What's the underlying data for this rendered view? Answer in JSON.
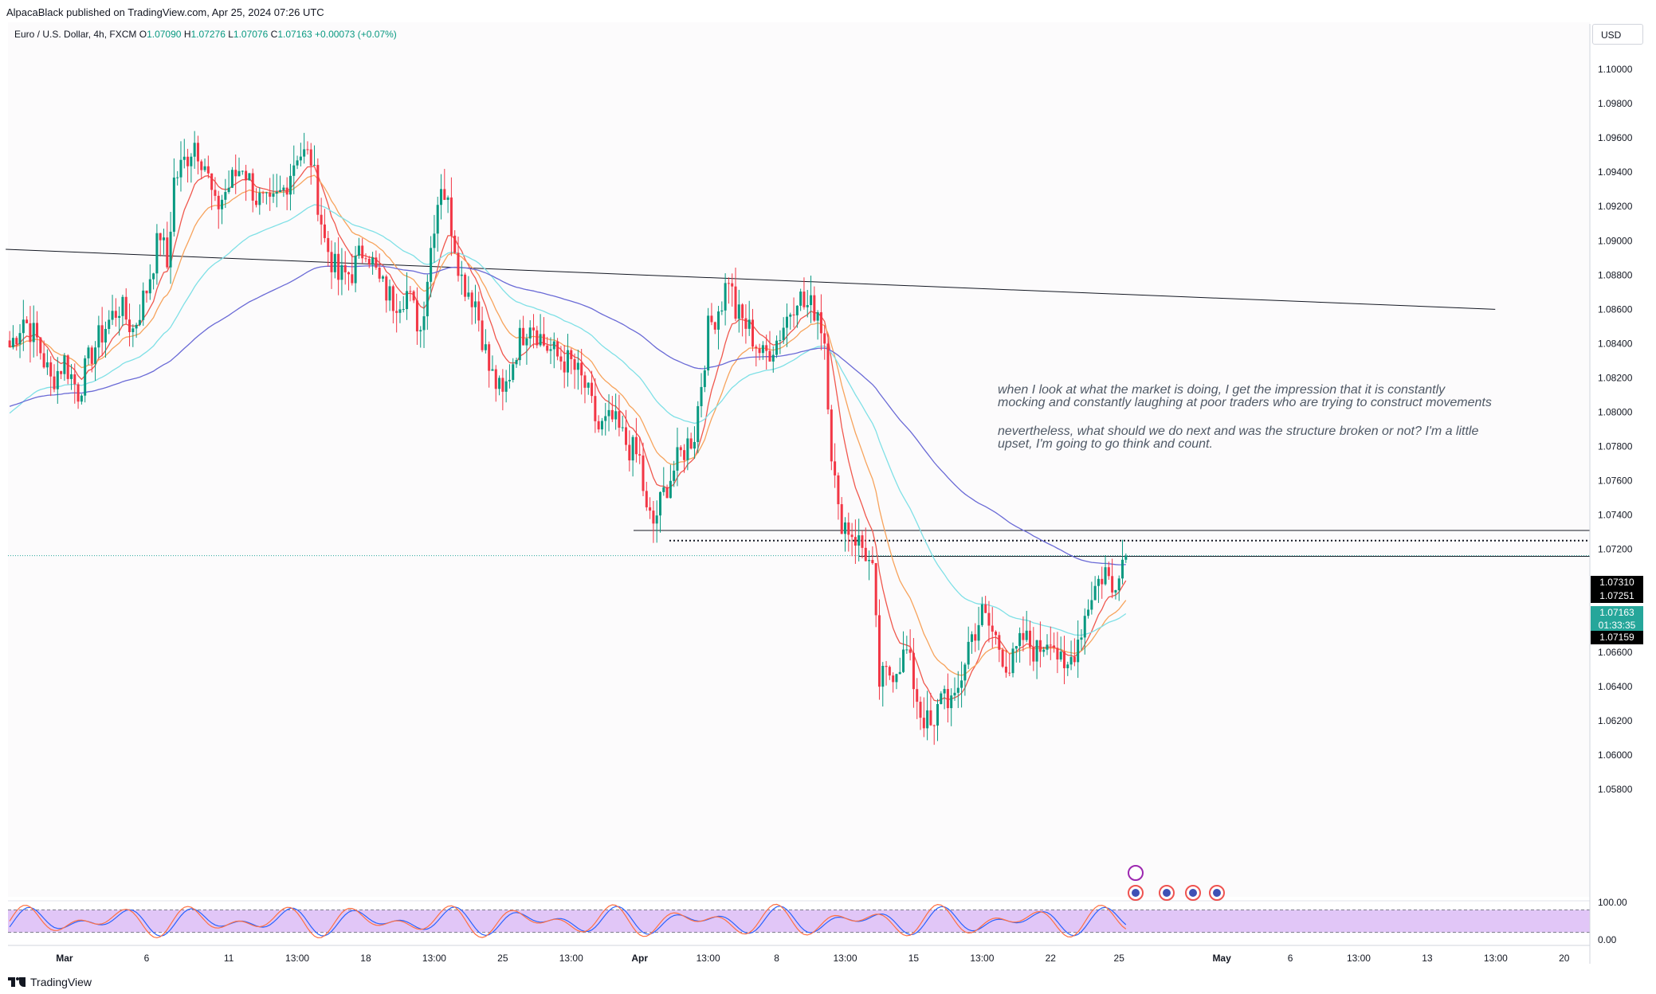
{
  "publisher_text": "AlpacaBlack published on TradingView.com, Apr 25, 2024 07:26 UTC",
  "symbol": {
    "name": "Euro / U.S. Dollar, 4h, FXCM",
    "open_label": "O",
    "open": "1.07090",
    "high_label": "H",
    "high": "1.07276",
    "low_label": "L",
    "low": "1.07076",
    "close_label": "C",
    "close": "1.07163",
    "change": "+0.00073 (+0.07%)"
  },
  "currency": "USD",
  "annotation": {
    "line1": "when I look at what the market is doing, I get the impression that it is constantly mocking and constantly laughing at poor traders who are trying to construct movements",
    "line2": "nevertheless, what should we do next and was the structure broken or not? I'm a little upset, I'm going to go think and count."
  },
  "price_labels": {
    "level_high": "1.07310",
    "level_mid": "1.07251",
    "last_price": "1.07163",
    "countdown": "01:33:35",
    "level_low": "1.07159"
  },
  "footer": "TradingView",
  "colors": {
    "up": "#089981",
    "down": "#f23645",
    "ema_fast": "#f0574d",
    "ema_mid": "#f7a35c",
    "ema_slow": "#7fe0e6",
    "ema_200": "#6a6ad6",
    "rsi_fast": "#ff7043",
    "rsi_slow": "#2962ff",
    "rsi_band": "#e1c6f7",
    "last": "#26a69a"
  },
  "chart_data": {
    "type": "candlestick",
    "symbol": "EURUSD",
    "timeframe": "4h",
    "y_axis": {
      "min": 1.056,
      "max": 1.102,
      "ticks": [
        "1.10000",
        "1.09800",
        "1.09600",
        "1.09400",
        "1.09200",
        "1.09000",
        "1.08800",
        "1.08600",
        "1.08400",
        "1.08200",
        "1.08000",
        "1.07800",
        "1.07600",
        "1.07400",
        "1.07200",
        "1.07000",
        "1.06800",
        "1.06600",
        "1.06400",
        "1.06200",
        "1.06000",
        "1.05800"
      ]
    },
    "x_axis": {
      "labels": [
        {
          "text": "Mar",
          "bar": 16
        },
        {
          "text": "6",
          "bar": 40
        },
        {
          "text": "11",
          "bar": 64
        },
        {
          "text": "13:00",
          "bar": 84
        },
        {
          "text": "18",
          "bar": 104
        },
        {
          "text": "13:00",
          "bar": 124
        },
        {
          "text": "25",
          "bar": 144
        },
        {
          "text": "13:00",
          "bar": 164
        },
        {
          "text": "Apr",
          "bar": 184
        },
        {
          "text": "13:00",
          "bar": 204
        },
        {
          "text": "8",
          "bar": 224
        },
        {
          "text": "13:00",
          "bar": 244
        },
        {
          "text": "15",
          "bar": 264
        },
        {
          "text": "13:00",
          "bar": 284
        },
        {
          "text": "22",
          "bar": 304
        },
        {
          "text": "25",
          "bar": 324
        },
        {
          "text": "May",
          "bar": 354
        },
        {
          "text": "6",
          "bar": 374
        },
        {
          "text": "13:00",
          "bar": 394
        },
        {
          "text": "13",
          "bar": 414
        },
        {
          "text": "13:00",
          "bar": 434
        },
        {
          "text": "20",
          "bar": 454
        }
      ]
    },
    "anchors": [
      [
        0,
        1.0838
      ],
      [
        4,
        1.0855
      ],
      [
        8,
        1.0842
      ],
      [
        12,
        1.0818
      ],
      [
        16,
        1.083
      ],
      [
        20,
        1.0812
      ],
      [
        24,
        1.0835
      ],
      [
        28,
        1.085
      ],
      [
        32,
        1.0862
      ],
      [
        36,
        1.0848
      ],
      [
        40,
        1.0872
      ],
      [
        44,
        1.0905
      ],
      [
        46,
        1.0885
      ],
      [
        48,
        1.0935
      ],
      [
        52,
        1.095
      ],
      [
        54,
        1.0958
      ],
      [
        57,
        1.0945
      ],
      [
        60,
        1.0918
      ],
      [
        64,
        1.0932
      ],
      [
        68,
        1.0945
      ],
      [
        72,
        1.0925
      ],
      [
        76,
        1.0918
      ],
      [
        80,
        1.093
      ],
      [
        84,
        1.0952
      ],
      [
        88,
        1.0948
      ],
      [
        92,
        1.09
      ],
      [
        96,
        1.0878
      ],
      [
        100,
        1.0882
      ],
      [
        104,
        1.0898
      ],
      [
        108,
        1.0875
      ],
      [
        112,
        1.0865
      ],
      [
        116,
        1.087
      ],
      [
        120,
        1.0848
      ],
      [
        124,
        1.0912
      ],
      [
        126,
        1.0935
      ],
      [
        128,
        1.092
      ],
      [
        132,
        1.0878
      ],
      [
        136,
        1.0865
      ],
      [
        140,
        1.0825
      ],
      [
        144,
        1.0808
      ],
      [
        148,
        1.0838
      ],
      [
        152,
        1.0855
      ],
      [
        156,
        1.084
      ],
      [
        160,
        1.0832
      ],
      [
        164,
        1.0828
      ],
      [
        168,
        1.0815
      ],
      [
        172,
        1.079
      ],
      [
        176,
        1.0795
      ],
      [
        180,
        1.0782
      ],
      [
        184,
        1.0772
      ],
      [
        186,
        1.074
      ],
      [
        188,
        1.0735
      ],
      [
        192,
        1.0758
      ],
      [
        196,
        1.0775
      ],
      [
        200,
        1.0788
      ],
      [
        204,
        1.0848
      ],
      [
        208,
        1.0865
      ],
      [
        210,
        1.088
      ],
      [
        212,
        1.0858
      ],
      [
        216,
        1.0848
      ],
      [
        220,
        1.0832
      ],
      [
        224,
        1.0842
      ],
      [
        228,
        1.086
      ],
      [
        230,
        1.087
      ],
      [
        232,
        1.0862
      ],
      [
        236,
        1.086
      ],
      [
        238,
        1.0842
      ],
      [
        240,
        1.0778
      ],
      [
        242,
        1.074
      ],
      [
        246,
        1.073
      ],
      [
        250,
        1.0718
      ],
      [
        252,
        1.0705
      ],
      [
        254,
        1.0642
      ],
      [
        258,
        1.065
      ],
      [
        262,
        1.066
      ],
      [
        266,
        1.0625
      ],
      [
        270,
        1.0612
      ],
      [
        272,
        1.064
      ],
      [
        276,
        1.0628
      ],
      [
        280,
        1.0665
      ],
      [
        284,
        1.0682
      ],
      [
        288,
        1.0668
      ],
      [
        292,
        1.065
      ],
      [
        296,
        1.0668
      ],
      [
        300,
        1.066
      ],
      [
        304,
        1.0672
      ],
      [
        308,
        1.0645
      ],
      [
        312,
        1.0668
      ],
      [
        316,
        1.0695
      ],
      [
        320,
        1.0708
      ],
      [
        322,
        1.0695
      ],
      [
        324,
        1.0712
      ],
      [
        326,
        1.07163
      ]
    ],
    "levels": [
      {
        "price": 1.0731,
        "style": "solid"
      },
      {
        "price": 1.07251,
        "style": "dotted"
      },
      {
        "price": 1.07159,
        "style": "solid"
      }
    ],
    "trendline": [
      [
        0,
        1.0895
      ],
      [
        432,
        1.086
      ]
    ],
    "rsi": {
      "upper": 80,
      "lower": 20,
      "labels": [
        "100.00",
        "0.00"
      ]
    }
  }
}
